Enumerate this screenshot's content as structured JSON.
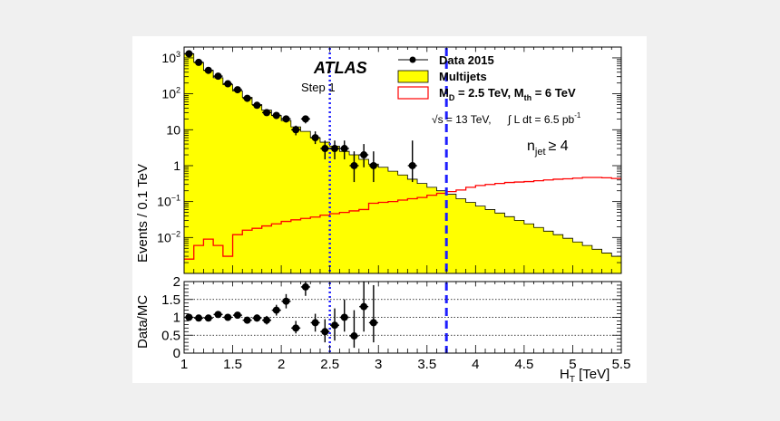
{
  "chart_data": {
    "type": "histogram",
    "experiment": "ATLAS",
    "selection": "Step 1",
    "energy_label": "√s = 13 TeV,",
    "lumi_label": "∫ L dt = 6.5 pb",
    "lumi_exp": "-1",
    "njet_base": "n",
    "njet_sub": "jet",
    "njet_cond": "≥ 4",
    "xlabel_base": "H",
    "xlabel_sub": "T",
    "xlabel_unit": " [TeV]",
    "top_ylabel": "Events / 0.1 TeV",
    "bottom_ylabel": "Data/MC",
    "xlim": [
      1,
      5.5
    ],
    "top_ylim": [
      0.001,
      2000
    ],
    "top_yscale": "log",
    "bottom_ylim": [
      0,
      2
    ],
    "x_ticks": [
      "1",
      "1.5",
      "2",
      "2.5",
      "3",
      "3.5",
      "4",
      "4.5",
      "5",
      "5.5"
    ],
    "top_y_ticks": [
      {
        "base": "10",
        "exp": "−2",
        "value": 0.01
      },
      {
        "base": "10",
        "exp": "−1",
        "value": 0.1
      },
      {
        "base": "1",
        "exp": "",
        "value": 1
      },
      {
        "base": "10",
        "exp": "",
        "value": 10
      },
      {
        "base": "10",
        "exp": "2",
        "value": 100
      },
      {
        "base": "10",
        "exp": "3",
        "value": 1000
      }
    ],
    "bottom_y_ticks": [
      "0",
      "0.5",
      "1",
      "1.5",
      "2"
    ],
    "reference_lines": [
      {
        "x": 2.5,
        "style": "dotted",
        "color": "#1f1fff"
      },
      {
        "x": 3.7,
        "style": "dashed",
        "color": "#1f1fff"
      }
    ],
    "legend": {
      "position": "top-right",
      "data_label": "Data 2015",
      "multijets_label": "Multijets",
      "signal_label_a": "M",
      "signal_sub_a": "D",
      "signal_label_b": " = 2.5 TeV, M",
      "signal_sub_b": "th",
      "signal_label_c": " = 6 TeV"
    },
    "colors": {
      "multijets_fill": "#ffff00",
      "signal_line": "#ff0000",
      "reference": "#1f1fff",
      "data": "#000000",
      "frame_bg": "#f0f0f0"
    },
    "bin_width": 0.1,
    "multijets": {
      "name": "Multijets",
      "x_start": 1.0,
      "values": [
        1300,
        750,
        450,
        280,
        180,
        120,
        80,
        50,
        35,
        25,
        18,
        12,
        9,
        6,
        4.5,
        3.5,
        2.5,
        2.0,
        1.5,
        1.1,
        0.9,
        0.7,
        0.55,
        0.42,
        0.32,
        0.25,
        0.2,
        0.16,
        0.12,
        0.095,
        0.075,
        0.06,
        0.048,
        0.038,
        0.03,
        0.024,
        0.019,
        0.015,
        0.012,
        0.0095,
        0.0075,
        0.006,
        0.0047,
        0.0037,
        0.003,
        0.0024
      ]
    },
    "signal": {
      "name": "M_D = 2.5 TeV, M_th = 6 TeV",
      "x_start": 1.0,
      "values": [
        0.0025,
        0.006,
        0.009,
        0.006,
        0.003,
        0.012,
        0.016,
        0.018,
        0.021,
        0.024,
        0.028,
        0.031,
        0.034,
        0.037,
        0.042,
        0.046,
        0.05,
        0.055,
        0.06,
        0.09,
        0.095,
        0.1,
        0.11,
        0.12,
        0.13,
        0.15,
        0.17,
        0.19,
        0.21,
        0.25,
        0.28,
        0.3,
        0.32,
        0.34,
        0.35,
        0.36,
        0.38,
        0.4,
        0.42,
        0.43,
        0.45,
        0.47,
        0.47,
        0.46,
        0.44,
        0.44
      ]
    },
    "data": {
      "name": "Data 2015",
      "points": [
        {
          "x": 1.05,
          "y": 1300,
          "lo": 1200,
          "hi": 1400
        },
        {
          "x": 1.15,
          "y": 750,
          "lo": 700,
          "hi": 800
        },
        {
          "x": 1.25,
          "y": 450,
          "lo": 410,
          "hi": 490
        },
        {
          "x": 1.35,
          "y": 310,
          "lo": 280,
          "hi": 340
        },
        {
          "x": 1.45,
          "y": 190,
          "lo": 170,
          "hi": 210
        },
        {
          "x": 1.55,
          "y": 130,
          "lo": 115,
          "hi": 145
        },
        {
          "x": 1.65,
          "y": 75,
          "lo": 65,
          "hi": 85
        },
        {
          "x": 1.75,
          "y": 48,
          "lo": 41,
          "hi": 55
        },
        {
          "x": 1.85,
          "y": 30,
          "lo": 25,
          "hi": 35
        },
        {
          "x": 1.95,
          "y": 25,
          "lo": 20,
          "hi": 30
        },
        {
          "x": 2.05,
          "y": 20,
          "lo": 16,
          "hi": 25
        },
        {
          "x": 2.15,
          "y": 10,
          "lo": 7,
          "hi": 13
        },
        {
          "x": 2.25,
          "y": 20,
          "lo": 15,
          "hi": 25
        },
        {
          "x": 2.35,
          "y": 6,
          "lo": 4,
          "hi": 9
        },
        {
          "x": 2.45,
          "y": 3,
          "lo": 1.5,
          "hi": 5
        },
        {
          "x": 2.55,
          "y": 3,
          "lo": 1.5,
          "hi": 5
        },
        {
          "x": 2.65,
          "y": 3,
          "lo": 1.5,
          "hi": 5
        },
        {
          "x": 2.75,
          "y": 1,
          "lo": 0.35,
          "hi": 2.5
        },
        {
          "x": 2.85,
          "y": 2,
          "lo": 0.9,
          "hi": 4
        },
        {
          "x": 2.95,
          "y": 1,
          "lo": 0.35,
          "hi": 2.5
        },
        {
          "x": 3.35,
          "y": 1,
          "lo": 0.35,
          "hi": 5
        }
      ]
    },
    "ratio": {
      "name": "Data/MC",
      "points": [
        {
          "x": 1.05,
          "y": 1.0,
          "lo": 0.95,
          "hi": 1.05
        },
        {
          "x": 1.15,
          "y": 0.98,
          "lo": 0.93,
          "hi": 1.03
        },
        {
          "x": 1.25,
          "y": 0.98,
          "lo": 0.93,
          "hi": 1.03
        },
        {
          "x": 1.35,
          "y": 1.08,
          "lo": 1.02,
          "hi": 1.14
        },
        {
          "x": 1.45,
          "y": 1.0,
          "lo": 0.93,
          "hi": 1.07
        },
        {
          "x": 1.55,
          "y": 1.06,
          "lo": 0.99,
          "hi": 1.13
        },
        {
          "x": 1.65,
          "y": 0.92,
          "lo": 0.84,
          "hi": 1.0
        },
        {
          "x": 1.75,
          "y": 0.98,
          "lo": 0.88,
          "hi": 1.08
        },
        {
          "x": 1.85,
          "y": 0.92,
          "lo": 0.8,
          "hi": 1.04
        },
        {
          "x": 1.95,
          "y": 1.2,
          "lo": 1.05,
          "hi": 1.35
        },
        {
          "x": 2.05,
          "y": 1.45,
          "lo": 1.25,
          "hi": 1.65
        },
        {
          "x": 2.15,
          "y": 0.7,
          "lo": 0.55,
          "hi": 0.9
        },
        {
          "x": 2.25,
          "y": 1.85,
          "lo": 1.6,
          "hi": 2.0
        },
        {
          "x": 2.35,
          "y": 0.85,
          "lo": 0.6,
          "hi": 1.1
        },
        {
          "x": 2.45,
          "y": 0.6,
          "lo": 0.3,
          "hi": 0.95
        },
        {
          "x": 2.55,
          "y": 0.78,
          "lo": 0.35,
          "hi": 1.25
        },
        {
          "x": 2.65,
          "y": 1.0,
          "lo": 0.6,
          "hi": 1.5
        },
        {
          "x": 2.75,
          "y": 0.48,
          "lo": 0.15,
          "hi": 1.2
        },
        {
          "x": 2.85,
          "y": 1.3,
          "lo": 0.6,
          "hi": 2.0
        },
        {
          "x": 2.95,
          "y": 0.85,
          "lo": 0.3,
          "hi": 1.9
        }
      ]
    }
  }
}
